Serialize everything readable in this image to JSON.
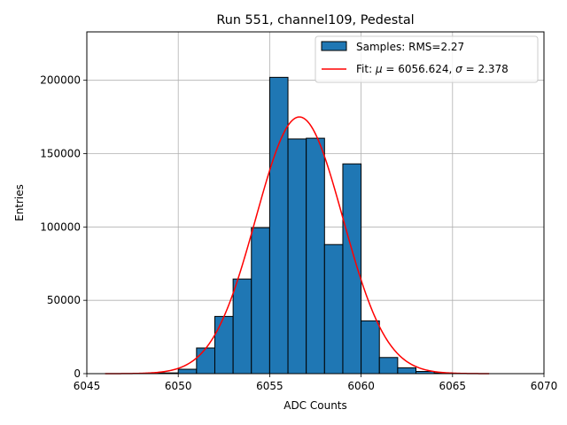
{
  "chart_data": {
    "type": "bar",
    "title": "Run 551, channel109, Pedestal",
    "xlabel": "ADC Counts",
    "ylabel": "Entries",
    "xlim": [
      6045,
      6070
    ],
    "ylim": [
      0,
      233000
    ],
    "grid": true,
    "legend_position": "top-right",
    "xticks": [
      6045,
      6050,
      6055,
      6060,
      6065,
      6070
    ],
    "yticks": [
      0,
      50000,
      100000,
      150000,
      200000
    ],
    "histogram": {
      "name": "Samples: RMS=2.27",
      "color": "#1f77b4",
      "edgecolor": "#000000",
      "bin_width": 1,
      "bins": [
        {
          "x": 6048,
          "value": 300
        },
        {
          "x": 6049,
          "value": 500
        },
        {
          "x": 6050,
          "value": 3000
        },
        {
          "x": 6051,
          "value": 17500
        },
        {
          "x": 6052,
          "value": 39000
        },
        {
          "x": 6053,
          "value": 64500
        },
        {
          "x": 6054,
          "value": 99500
        },
        {
          "x": 6055,
          "value": 202000
        },
        {
          "x": 6056,
          "value": 160000
        },
        {
          "x": 6057,
          "value": 160500
        },
        {
          "x": 6058,
          "value": 88000
        },
        {
          "x": 6059,
          "value": 143000
        },
        {
          "x": 6060,
          "value": 36000
        },
        {
          "x": 6061,
          "value": 11000
        },
        {
          "x": 6062,
          "value": 4000
        },
        {
          "x": 6063,
          "value": 1500
        },
        {
          "x": 6064,
          "value": 500
        }
      ]
    },
    "fit": {
      "name": "Fit: μ = 6056.624, σ = 2.378",
      "legend_prefix": "Fit: ",
      "legend_mu": "μ",
      "legend_mu_value": " = 6056.624, ",
      "legend_sigma": "σ",
      "legend_sigma_value": " = 2.378",
      "color": "#ff0000",
      "mu": 6056.624,
      "sigma": 2.378,
      "amplitude": 175000,
      "x_range": [
        6046,
        6067
      ]
    }
  }
}
